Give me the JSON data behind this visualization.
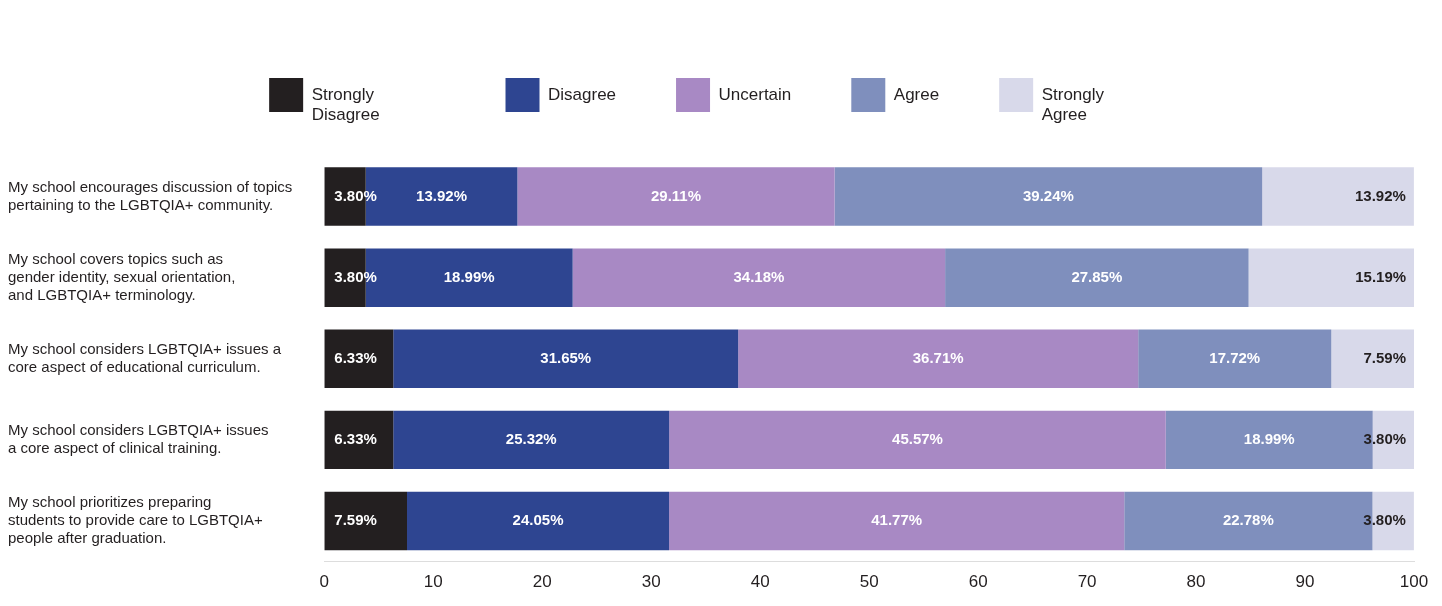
{
  "chart_data": {
    "type": "bar",
    "orientation": "horizontal",
    "stacked": true,
    "legend": "top",
    "grid": false,
    "xlim": [
      0,
      100
    ],
    "xticks": [
      0,
      10,
      20,
      30,
      40,
      50,
      60,
      70,
      80,
      90,
      100
    ],
    "categories": [
      "My school encourages discussion of topics\npertaining to the LGBTQIA+ community.",
      "My school covers topics such as\ngender identity, sexual orientation,\nand LGBTQIA+ terminology.",
      "My school considers LGBTQIA+ issues a\ncore aspect of educational curriculum.",
      "My school considers LGBTQIA+ issues\na core aspect of clinical training.",
      "My school prioritizes preparing\nstudents to provide care to LGBTQIA+\npeople after graduation."
    ],
    "series": [
      {
        "name": "Strongly\nDisagree",
        "color": "#231f20",
        "values": [
          3.8,
          3.8,
          6.33,
          6.33,
          7.59
        ],
        "value_labels": [
          "3.80%",
          "3.80%",
          "6.33%",
          "6.33%",
          "7.59%"
        ]
      },
      {
        "name": "Disagree",
        "color": "#2e4591",
        "values": [
          13.92,
          18.99,
          31.65,
          25.32,
          24.05
        ],
        "value_labels": [
          "13.92%",
          "18.99%",
          "31.65%",
          "25.32%",
          "24.05%"
        ]
      },
      {
        "name": "Uncertain",
        "color": "#a889c4",
        "values": [
          29.11,
          34.18,
          36.71,
          45.57,
          41.77
        ],
        "value_labels": [
          "29.11%",
          "34.18%",
          "36.71%",
          "45.57%",
          "41.77%"
        ]
      },
      {
        "name": "Agree",
        "color": "#7f8fbd",
        "values": [
          39.24,
          27.85,
          17.72,
          18.99,
          22.78
        ],
        "value_labels": [
          "39.24%",
          "27.85%",
          "17.72%",
          "18.99%",
          "22.78%"
        ]
      },
      {
        "name": "Strongly\nAgree",
        "color": "#d8d9ea",
        "values": [
          13.92,
          15.19,
          7.59,
          3.8,
          3.8
        ],
        "value_labels": [
          "13.92%",
          "15.19%",
          "7.59%",
          "3.80%",
          "3.80%"
        ]
      }
    ]
  }
}
